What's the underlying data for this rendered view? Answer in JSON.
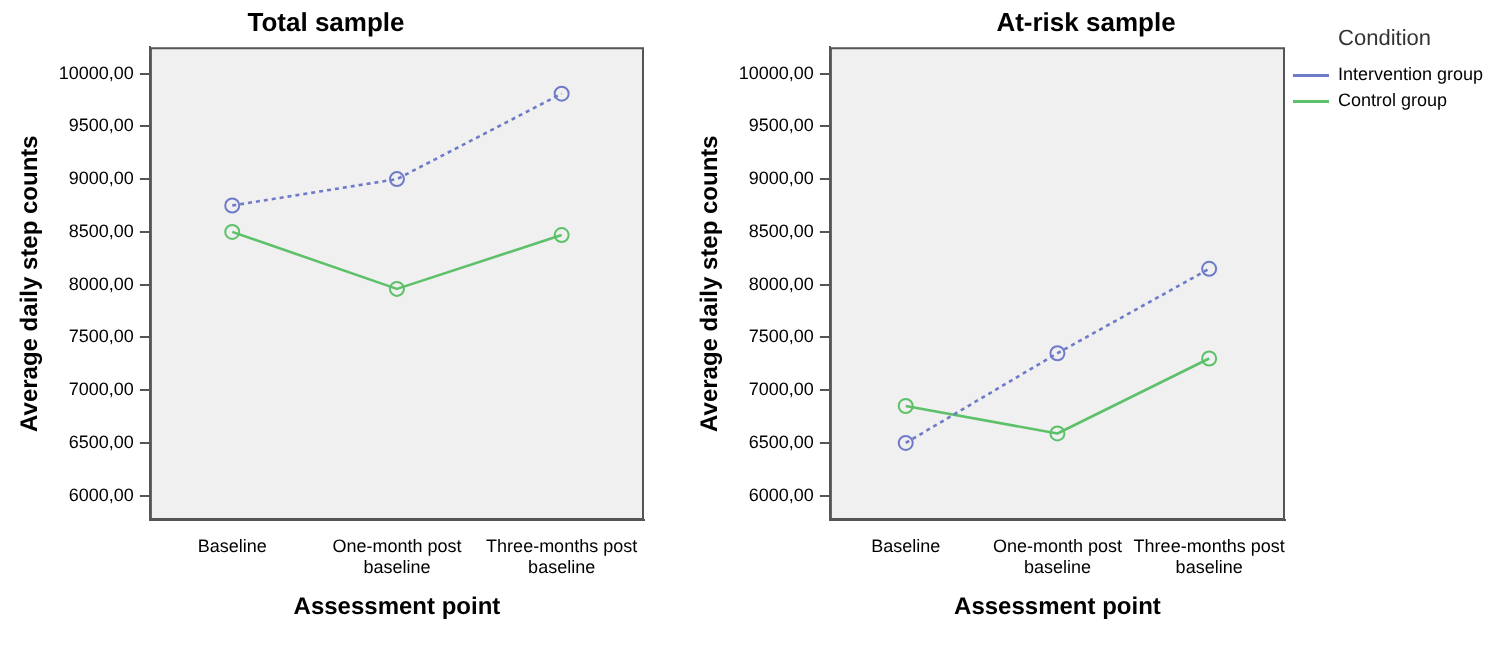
{
  "chart_data": [
    {
      "type": "line",
      "title": "Total sample",
      "xlabel": "Assessment point",
      "ylabel": "Average daily step counts",
      "categories": [
        "Baseline",
        "One-month post baseline",
        "Three-months post baseline"
      ],
      "series": [
        {
          "color": "#6f7bc8",
          "line_style": "dotted",
          "values": [
            8750,
            9000,
            9810
          ]
        },
        {
          "color": "#5cc168",
          "line_style": "solid",
          "values": [
            8500,
            7960,
            8470
          ]
        }
      ],
      "ylim": [
        5770,
        10250
      ],
      "yticks": [
        {
          "value": 6000,
          "label": "6000,00"
        },
        {
          "value": 6500,
          "label": "6500,00"
        },
        {
          "value": 7000,
          "label": "7000,00"
        },
        {
          "value": 7500,
          "label": "7500,00"
        },
        {
          "value": 8000,
          "label": "8000,00"
        },
        {
          "value": 8500,
          "label": "8500,00"
        },
        {
          "value": 9000,
          "label": "9000,00"
        },
        {
          "value": 9500,
          "label": "9500,00"
        },
        {
          "value": 10000,
          "label": "10000,00"
        }
      ],
      "grid": false,
      "legend": false,
      "marker": "circle"
    },
    {
      "type": "line",
      "title": "At-risk sample",
      "xlabel": "Assessment point",
      "ylabel": "Average daily step counts",
      "legend_title": "Condition",
      "categories": [
        "Baseline",
        "One-month post baseline",
        "Three-months post baseline"
      ],
      "series": [
        {
          "name": "Intervention group",
          "color": "#6f7bc8",
          "line_style": "dotted",
          "values": [
            6500,
            7350,
            8150
          ]
        },
        {
          "name": "Control group",
          "color": "#5cc168",
          "line_style": "solid",
          "values": [
            6850,
            6590,
            7300
          ]
        }
      ],
      "ylim": [
        5770,
        10250
      ],
      "yticks": [
        {
          "value": 6000,
          "label": "6000,00"
        },
        {
          "value": 6500,
          "label": "6500,00"
        },
        {
          "value": 7000,
          "label": "7000,00"
        },
        {
          "value": 7500,
          "label": "7500,00"
        },
        {
          "value": 8000,
          "label": "8000,00"
        },
        {
          "value": 8500,
          "label": "8500,00"
        },
        {
          "value": 9000,
          "label": "9000,00"
        },
        {
          "value": 9500,
          "label": "9500,00"
        },
        {
          "value": 10000,
          "label": "10000,00"
        }
      ],
      "grid": false,
      "legend": "right",
      "marker": "circle"
    }
  ]
}
